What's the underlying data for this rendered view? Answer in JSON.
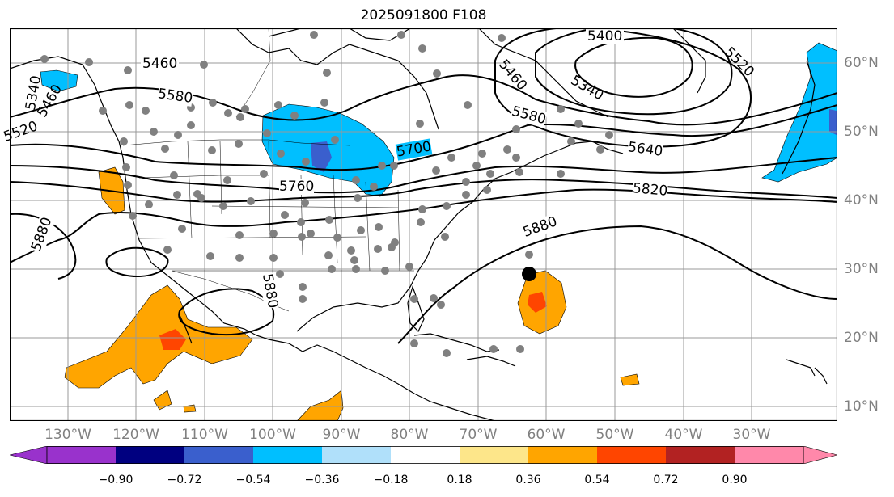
{
  "title": "2025091800 F108",
  "map": {
    "lon_labels": [
      "130°W",
      "120°W",
      "110°W",
      "100°W",
      "90°W",
      "80°W",
      "70°W",
      "60°W",
      "50°W",
      "40°W",
      "30°W"
    ],
    "lat_labels": [
      "60°N",
      "50°N",
      "40°N",
      "30°N",
      "20°N",
      "10°N"
    ],
    "contour_labels": [
      "5400",
      "5460",
      "5520",
      "5340",
      "5580",
      "5460",
      "5580",
      "5640",
      "5700",
      "5760",
      "5820",
      "5880",
      "5880",
      "5880",
      "5340",
      "5460",
      "5520"
    ],
    "colors": {
      "ocean": "#ffffff",
      "grid": "#999999",
      "coast": "#000000",
      "contour": "#000000",
      "station_dot": "#808080",
      "storm_marker": "#000000"
    }
  },
  "colorbar": {
    "ticks": [
      "−0.90",
      "−0.72",
      "−0.54",
      "−0.36",
      "−0.18",
      "0.18",
      "0.36",
      "0.54",
      "0.72",
      "0.90"
    ],
    "colors": [
      "#9932cc",
      "#000080",
      "#3a5fcd",
      "#00bfff",
      "#b0e0fa",
      "#ffffff",
      "#fde68a",
      "#ffa500",
      "#ff4500",
      "#b22222",
      "#ff88aa"
    ]
  }
}
